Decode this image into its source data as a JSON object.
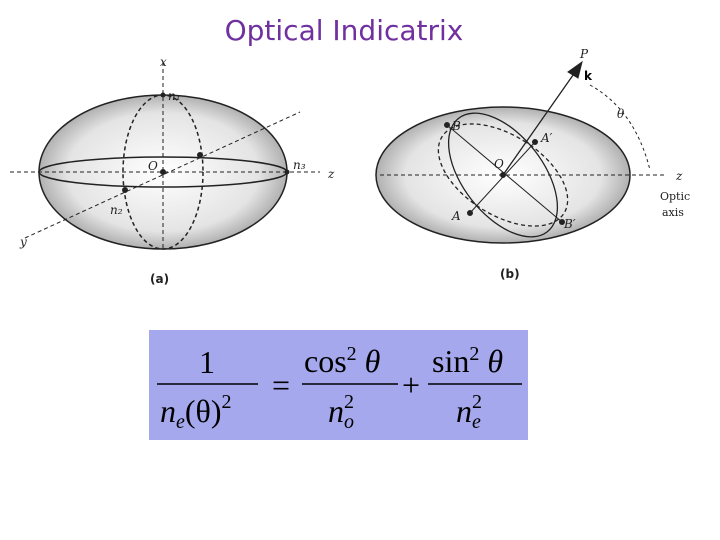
{
  "title": "Optical Indicatrix",
  "figure_a": {
    "labels": {
      "x": "x",
      "n1": "n₁",
      "origin": "O",
      "n3": "n₃",
      "z": "z",
      "n2": "n₂",
      "y": "y"
    },
    "caption": "(a)"
  },
  "figure_b": {
    "labels": {
      "P": "P",
      "k": "k",
      "theta": "θ",
      "B": "B",
      "A_prime": "A′",
      "origin": "O",
      "z": "z",
      "optic": "Optic",
      "axis": "axis",
      "A": "A",
      "B_prime": "B′"
    },
    "caption": "(b)"
  },
  "equation": {
    "lhs_numerator": "1",
    "lhs_denominator": {
      "base": "n",
      "sub": "e",
      "rest": "(θ)",
      "sup": "2"
    },
    "equals": "=",
    "term1_numerator": {
      "func": "cos",
      "sup": "2",
      "arg": " θ"
    },
    "term1_denominator": {
      "base": "n",
      "sub": "o",
      "sup": "2"
    },
    "plus": "+",
    "term2_numerator": {
      "func": "sin",
      "sup": "2",
      "arg": " θ"
    },
    "term2_denominator": {
      "base": "n",
      "sub": "e",
      "sup": "2"
    }
  }
}
